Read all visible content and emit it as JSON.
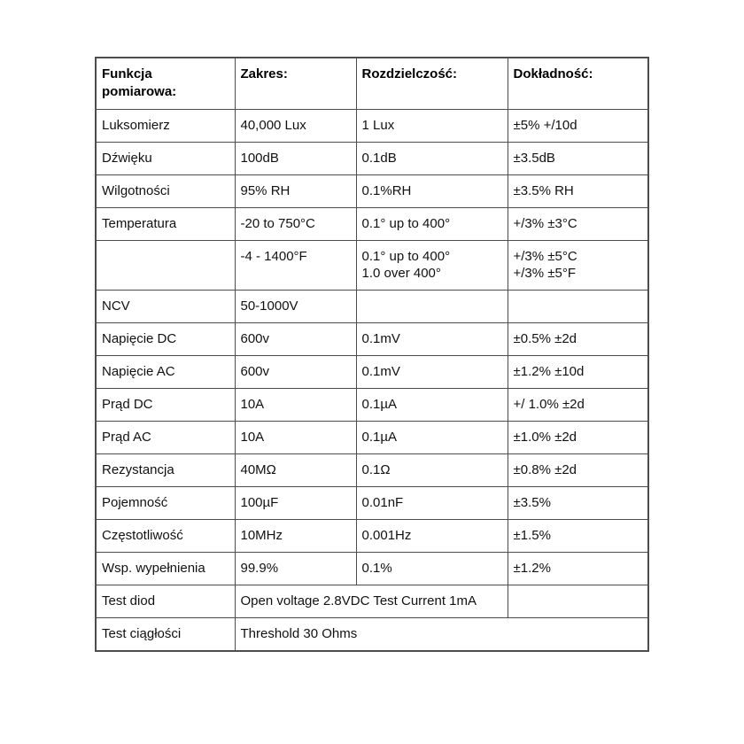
{
  "colors": {
    "background": "#ffffff",
    "border": "#4d4d4d",
    "text": "#111111"
  },
  "table": {
    "headers": [
      "Funkcja pomiarowa:",
      "Zakres:",
      "Rozdzielczość:",
      "Dokładność:"
    ],
    "rows": [
      {
        "cells": [
          {
            "text": "Luksomierz",
            "colspan": 1
          },
          {
            "text": "40,000 Lux",
            "colspan": 1
          },
          {
            "text": "1 Lux",
            "colspan": 1
          },
          {
            "text": "±5% +/10d",
            "colspan": 1
          }
        ]
      },
      {
        "cells": [
          {
            "text": "Dźwięku",
            "colspan": 1
          },
          {
            "text": "100dB",
            "colspan": 1
          },
          {
            "text": "0.1dB",
            "colspan": 1
          },
          {
            "text": "±3.5dB",
            "colspan": 1
          }
        ]
      },
      {
        "cells": [
          {
            "text": "Wilgotności",
            "colspan": 1
          },
          {
            "text": "95% RH",
            "colspan": 1
          },
          {
            "text": "0.1%RH",
            "colspan": 1
          },
          {
            "text": "±3.5% RH",
            "colspan": 1
          }
        ]
      },
      {
        "cells": [
          {
            "text": "Temperatura",
            "colspan": 1
          },
          {
            "text": "-20 to 750°C",
            "colspan": 1
          },
          {
            "text": "0.1° up to 400°",
            "colspan": 1
          },
          {
            "text": "+/3% ±3°C",
            "colspan": 1
          }
        ]
      },
      {
        "cells": [
          {
            "text": "",
            "colspan": 1
          },
          {
            "text": "-4 - 1400°F",
            "colspan": 1
          },
          {
            "text": "0.1° up to 400°\n1.0 over 400°",
            "colspan": 1
          },
          {
            "text": "+/3% ±5°C\n+/3% ±5°F",
            "colspan": 1
          }
        ]
      },
      {
        "cells": [
          {
            "text": "NCV",
            "colspan": 1
          },
          {
            "text": "50-1000V",
            "colspan": 1
          },
          {
            "text": "",
            "colspan": 1
          },
          {
            "text": "",
            "colspan": 1
          }
        ]
      },
      {
        "cells": [
          {
            "text": "Napięcie DC",
            "colspan": 1
          },
          {
            "text": "600v",
            "colspan": 1
          },
          {
            "text": "0.1mV",
            "colspan": 1
          },
          {
            "text": "±0.5% ±2d",
            "colspan": 1
          }
        ]
      },
      {
        "cells": [
          {
            "text": "Napięcie AC",
            "colspan": 1
          },
          {
            "text": "600v",
            "colspan": 1
          },
          {
            "text": "0.1mV",
            "colspan": 1
          },
          {
            "text": "±1.2% ±10d",
            "colspan": 1
          }
        ]
      },
      {
        "cells": [
          {
            "text": "Prąd DC",
            "colspan": 1
          },
          {
            "text": "10A",
            "colspan": 1
          },
          {
            "text": "0.1µA",
            "colspan": 1
          },
          {
            "text": "+/ 1.0% ±2d",
            "colspan": 1
          }
        ]
      },
      {
        "cells": [
          {
            "text": "Prąd AC",
            "colspan": 1
          },
          {
            "text": "10A",
            "colspan": 1
          },
          {
            "text": "0.1µA",
            "colspan": 1
          },
          {
            "text": "±1.0% ±2d",
            "colspan": 1
          }
        ]
      },
      {
        "cells": [
          {
            "text": "Rezystancja",
            "colspan": 1
          },
          {
            "text": "40MΩ",
            "colspan": 1
          },
          {
            "text": "0.1Ω",
            "colspan": 1
          },
          {
            "text": "±0.8% ±2d",
            "colspan": 1
          }
        ]
      },
      {
        "cells": [
          {
            "text": "Pojemność",
            "colspan": 1
          },
          {
            "text": "100µF",
            "colspan": 1
          },
          {
            "text": "0.01nF",
            "colspan": 1
          },
          {
            "text": "±3.5%",
            "colspan": 1
          }
        ]
      },
      {
        "cells": [
          {
            "text": "Częstotliwość",
            "colspan": 1
          },
          {
            "text": "10MHz",
            "colspan": 1
          },
          {
            "text": "0.001Hz",
            "colspan": 1
          },
          {
            "text": "±1.5%",
            "colspan": 1
          }
        ]
      },
      {
        "cells": [
          {
            "text": "Wsp. wypełnienia",
            "colspan": 1
          },
          {
            "text": "99.9%",
            "colspan": 1
          },
          {
            "text": "0.1%",
            "colspan": 1
          },
          {
            "text": "±1.2%",
            "colspan": 1
          }
        ]
      },
      {
        "cells": [
          {
            "text": "Test diod",
            "colspan": 1
          },
          {
            "text": "Open voltage 2.8VDC Test Current 1mA",
            "colspan": 2
          },
          {
            "text": "",
            "colspan": 1
          }
        ]
      },
      {
        "cells": [
          {
            "text": "Test ciągłości",
            "colspan": 1
          },
          {
            "text": "Threshold 30 Ohms",
            "colspan": 3
          }
        ]
      }
    ]
  }
}
